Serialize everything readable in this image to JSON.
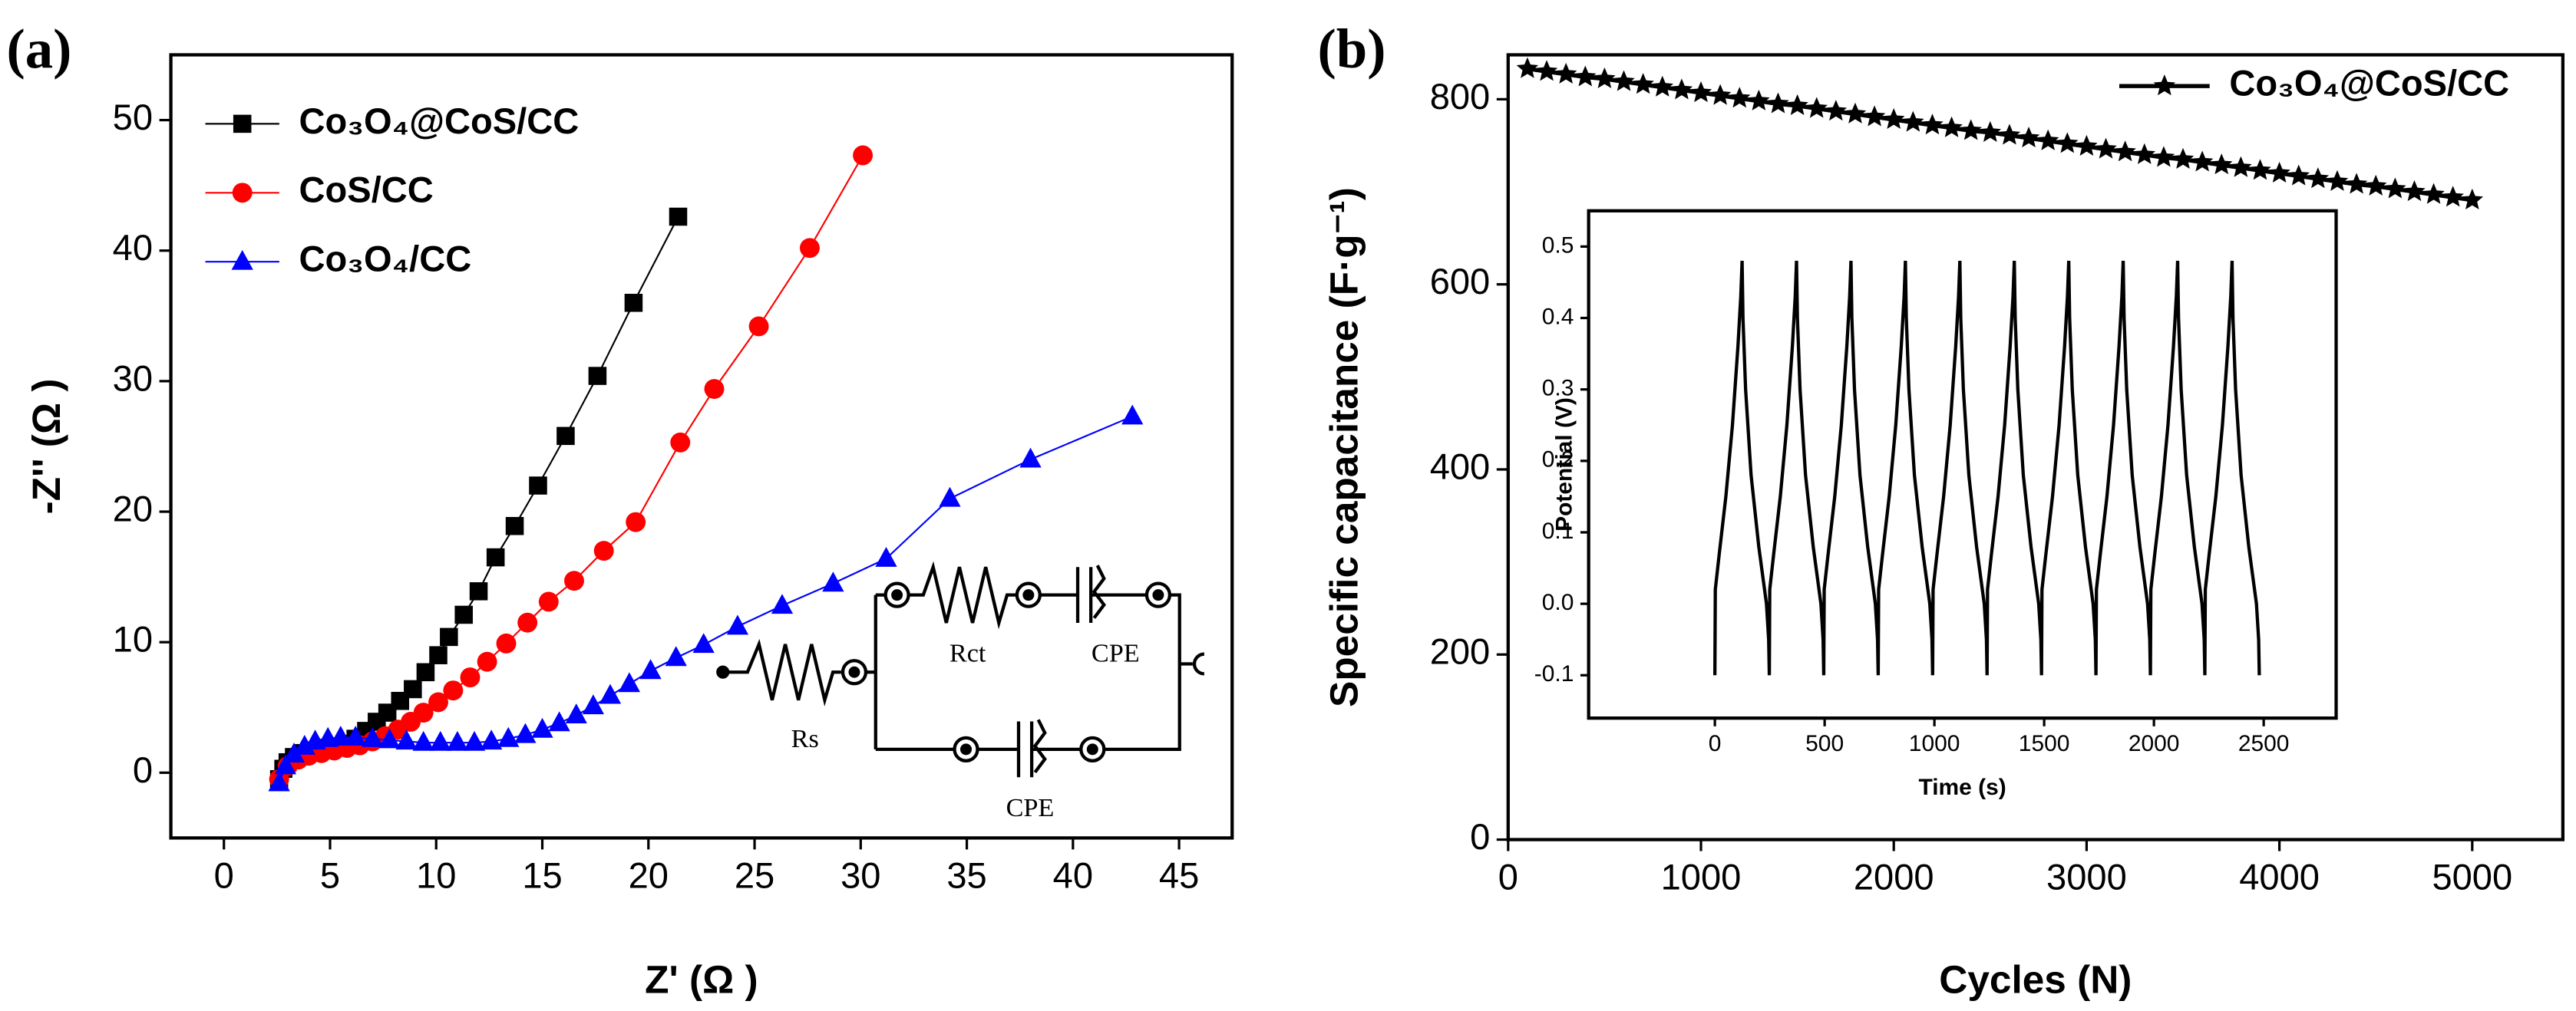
{
  "panel_labels": [
    "(a)",
    "(b)"
  ],
  "circuit": {
    "labels": [
      "Rs",
      "Rct",
      "CPE",
      "CPE"
    ]
  },
  "chart_data": [
    {
      "type": "line",
      "xlabel": "Z' (Ω )",
      "ylabel": "-Z'' (Ω )",
      "xlim": [
        -2.5,
        47.5
      ],
      "ylim": [
        -5,
        55
      ],
      "xticks": [
        0,
        5,
        10,
        15,
        20,
        25,
        30,
        35,
        40,
        45
      ],
      "yticks": [
        0,
        10,
        20,
        30,
        40,
        50
      ],
      "series": [
        {
          "name": "Co₃O₄@CoS/CC",
          "color": "#000000",
          "marker": "square",
          "x": [
            2.6,
            2.8,
            3.0,
            3.3,
            3.7,
            4.2,
            4.7,
            5.2,
            5.7,
            6.2,
            6.7,
            7.2,
            7.7,
            8.3,
            8.9,
            9.5,
            10.1,
            10.6,
            11.3,
            12.0,
            12.8,
            13.7,
            14.8,
            16.1,
            17.6,
            19.3,
            21.4
          ],
          "values": [
            -0.5,
            0.3,
            0.8,
            1.2,
            1.5,
            1.7,
            1.9,
            2.0,
            2.2,
            2.6,
            3.2,
            3.9,
            4.6,
            5.5,
            6.4,
            7.7,
            9.0,
            10.4,
            12.1,
            13.9,
            16.5,
            18.9,
            22.0,
            25.8,
            30.4,
            36.0,
            42.6
          ]
        },
        {
          "name": "CoS/CC",
          "color": "#ff0000",
          "marker": "circle",
          "x": [
            2.6,
            3.0,
            3.5,
            4.0,
            4.6,
            5.2,
            5.8,
            6.4,
            7.0,
            7.6,
            8.2,
            8.8,
            9.4,
            10.1,
            10.8,
            11.6,
            12.4,
            13.3,
            14.3,
            15.3,
            16.5,
            17.9,
            19.4,
            21.5,
            23.1,
            25.2,
            27.6,
            30.1
          ],
          "values": [
            -0.5,
            0.5,
            1.0,
            1.3,
            1.5,
            1.7,
            1.9,
            2.1,
            2.4,
            2.8,
            3.3,
            3.9,
            4.6,
            5.4,
            6.3,
            7.3,
            8.5,
            9.9,
            11.5,
            13.1,
            14.7,
            17.0,
            19.2,
            25.3,
            29.4,
            34.2,
            40.2,
            47.3
          ]
        },
        {
          "name": "Co₃O₄/CC",
          "color": "#0000ff",
          "marker": "triangle",
          "x": [
            2.6,
            2.9,
            3.3,
            3.8,
            4.3,
            4.9,
            5.5,
            6.2,
            7.0,
            7.8,
            8.6,
            9.4,
            10.2,
            11.0,
            11.8,
            12.6,
            13.4,
            14.2,
            15.0,
            15.8,
            16.6,
            17.4,
            18.2,
            19.1,
            20.1,
            21.3,
            22.6,
            24.2,
            26.3,
            28.7,
            31.2,
            34.2,
            38.0,
            42.8
          ],
          "values": [
            -0.8,
            0.5,
            1.4,
            2.0,
            2.4,
            2.6,
            2.7,
            2.7,
            2.6,
            2.5,
            2.4,
            2.3,
            2.3,
            2.3,
            2.3,
            2.4,
            2.6,
            2.9,
            3.3,
            3.8,
            4.4,
            5.1,
            5.9,
            6.8,
            7.8,
            8.8,
            9.8,
            11.2,
            12.8,
            14.5,
            16.4,
            21.0,
            24.0,
            27.3
          ]
        }
      ]
    },
    {
      "type": "line",
      "xlabel": "Cycles (N)",
      "ylabel": "Specific capacitance (F·g⁻¹)",
      "xlim": [
        0,
        5470
      ],
      "ylim": [
        0,
        848
      ],
      "xticks": [
        0,
        1000,
        2000,
        3000,
        4000,
        5000
      ],
      "yticks": [
        0,
        200,
        400,
        600,
        800
      ],
      "series": [
        {
          "name": "Co₃O₄@CoS/CC",
          "color": "#000000",
          "marker": "star",
          "x": [
            100,
            200,
            300,
            400,
            500,
            600,
            700,
            800,
            900,
            1000,
            1100,
            1200,
            1300,
            1400,
            1500,
            1600,
            1700,
            1800,
            1900,
            2000,
            2100,
            2200,
            2300,
            2400,
            2500,
            2600,
            2700,
            2800,
            2900,
            3000,
            3100,
            3200,
            3300,
            3400,
            3500,
            3600,
            3700,
            3800,
            3900,
            4000,
            4100,
            4200,
            4300,
            4400,
            4500,
            4600,
            4700,
            4800,
            4900,
            5000
          ],
          "values": [
            833,
            830,
            827,
            824,
            822,
            819,
            816,
            813,
            810,
            807,
            804,
            801,
            798,
            795,
            793,
            790,
            787,
            784,
            781,
            778,
            775,
            772,
            769,
            766,
            764,
            761,
            758,
            755,
            752,
            749,
            746,
            743,
            740,
            737,
            735,
            732,
            729,
            726,
            723,
            720,
            717,
            714,
            711,
            708,
            706,
            703,
            700,
            697,
            694,
            691
          ]
        }
      ]
    },
    {
      "type": "line",
      "xlabel": "Time (s)",
      "ylabel": "Potential (V)",
      "xlim": [
        -575,
        2830
      ],
      "ylim": [
        -0.16,
        0.55
      ],
      "xticks": [
        0,
        500,
        1000,
        1500,
        2000,
        2500
      ],
      "yticks": [
        -0.1,
        {
          "value": 0,
          "label": "0.0"
        },
        0.1,
        0.2,
        0.3,
        0.4,
        0.5
      ],
      "series": [
        {
          "color": "#000000",
          "x": [
            0,
            2,
            20,
            50,
            80,
            105,
            118,
            124,
            128,
            140,
            165,
            200,
            235,
            245,
            248,
            250,
            268,
            298,
            328,
            353,
            366,
            372,
            376,
            388,
            413,
            448,
            483,
            493,
            496,
            498,
            516,
            546,
            576,
            601,
            614,
            620,
            624,
            636,
            661,
            696,
            731,
            741,
            744,
            746,
            764,
            794,
            824,
            849,
            862,
            868,
            872,
            884,
            909,
            944,
            979,
            989,
            992,
            994,
            1012,
            1042,
            1072,
            1097,
            1110,
            1116,
            1120,
            1132,
            1157,
            1192,
            1227,
            1237,
            1240,
            1242,
            1260,
            1290,
            1320,
            1345,
            1358,
            1364,
            1368,
            1380,
            1405,
            1440,
            1475,
            1485,
            1488,
            1490,
            1508,
            1538,
            1568,
            1593,
            1606,
            1612,
            1616,
            1628,
            1653,
            1688,
            1723,
            1733,
            1736,
            1738,
            1756,
            1786,
            1816,
            1841,
            1854,
            1860,
            1864,
            1876,
            1901,
            1936,
            1971,
            1981,
            1984,
            1986,
            2004,
            2034,
            2064,
            2089,
            2102,
            2108,
            2112,
            2124,
            2149,
            2184,
            2219,
            2229,
            2232,
            2234,
            2252,
            2282,
            2312,
            2337,
            2350,
            2356,
            2360,
            2372,
            2397,
            2432,
            2467,
            2477,
            2480
          ],
          "values": [
            -0.1,
            0.02,
            0.07,
            0.15,
            0.25,
            0.36,
            0.43,
            0.48,
            0.4,
            0.3,
            0.18,
            0.08,
            0.0,
            -0.05,
            -0.1,
            0.02,
            0.07,
            0.15,
            0.25,
            0.36,
            0.43,
            0.48,
            0.4,
            0.3,
            0.18,
            0.08,
            0.0,
            -0.05,
            -0.1,
            0.02,
            0.07,
            0.15,
            0.25,
            0.36,
            0.43,
            0.48,
            0.4,
            0.3,
            0.18,
            0.08,
            0.0,
            -0.05,
            -0.1,
            0.02,
            0.07,
            0.15,
            0.25,
            0.36,
            0.43,
            0.48,
            0.4,
            0.3,
            0.18,
            0.08,
            0.0,
            -0.05,
            -0.1,
            0.02,
            0.07,
            0.15,
            0.25,
            0.36,
            0.43,
            0.48,
            0.4,
            0.3,
            0.18,
            0.08,
            0.0,
            -0.05,
            -0.1,
            0.02,
            0.07,
            0.15,
            0.25,
            0.36,
            0.43,
            0.48,
            0.4,
            0.3,
            0.18,
            0.08,
            0.0,
            -0.05,
            -0.1,
            0.02,
            0.07,
            0.15,
            0.25,
            0.36,
            0.43,
            0.48,
            0.4,
            0.3,
            0.18,
            0.08,
            0.0,
            -0.05,
            -0.1,
            0.02,
            0.07,
            0.15,
            0.25,
            0.36,
            0.43,
            0.48,
            0.4,
            0.3,
            0.18,
            0.08,
            0.0,
            -0.05,
            -0.1,
            0.02,
            0.07,
            0.15,
            0.25,
            0.36,
            0.43,
            0.48,
            0.4,
            0.3,
            0.18,
            0.08,
            0.0,
            -0.05,
            -0.1,
            0.02,
            0.07,
            0.15,
            0.25,
            0.36,
            0.43,
            0.48,
            0.4,
            0.3,
            0.18,
            0.08,
            0.0,
            -0.05,
            -0.1
          ]
        }
      ]
    }
  ]
}
